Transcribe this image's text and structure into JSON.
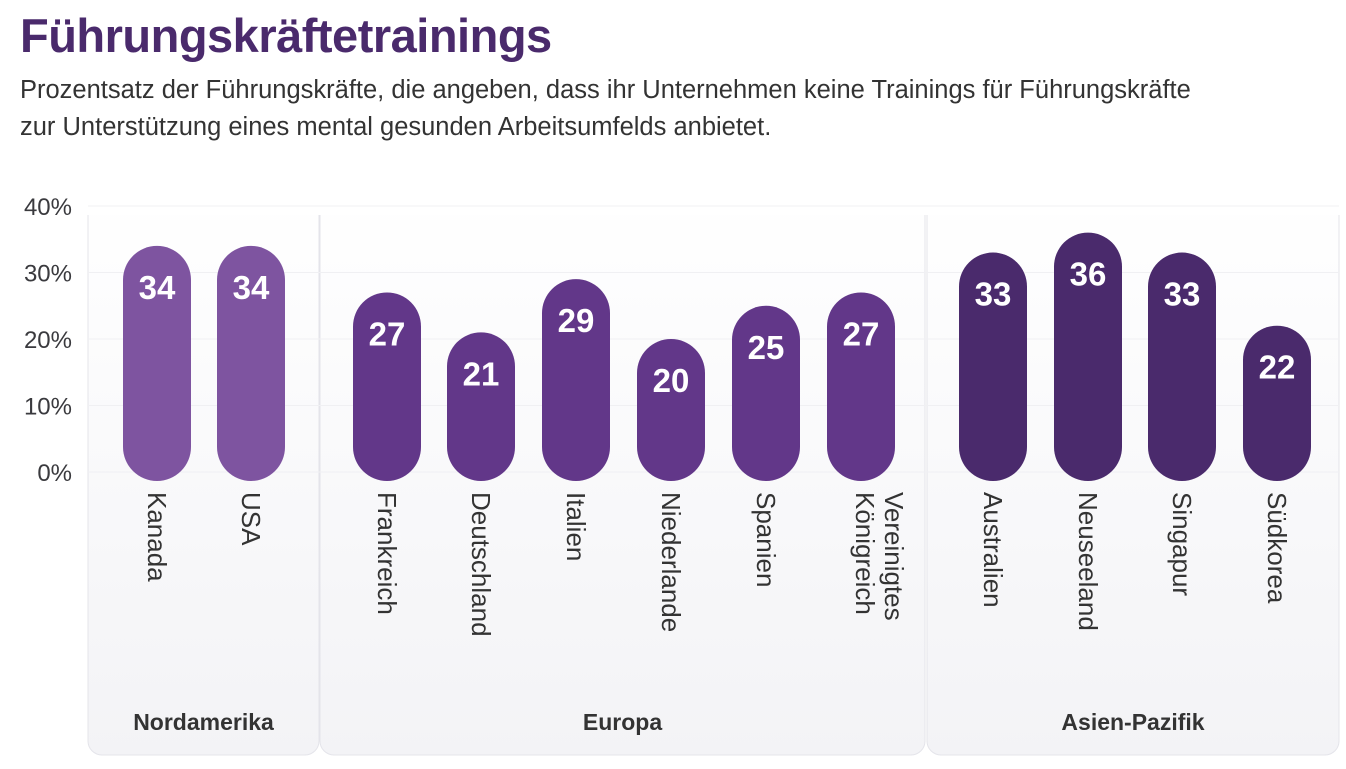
{
  "chart_data": {
    "type": "bar",
    "title": "Führungskräftetrainings",
    "subtitle": "Prozentsatz der Führungskräfte, die angeben, dass ihr Unternehmen keine Trainings für Führungskräfte zur Unterstützung eines mental gesunden Arbeitsumfelds anbietet.",
    "xlabel": "",
    "ylabel": "",
    "ylim": [
      0,
      40
    ],
    "yticks": [
      "0%",
      "10%",
      "20%",
      "30%",
      "40%"
    ],
    "grid": true,
    "groups": [
      {
        "name": "Nordamerika",
        "color": "#7e54a0",
        "categories": [
          "Kanada",
          "USA"
        ],
        "values": [
          34,
          34
        ]
      },
      {
        "name": "Europa",
        "color": "#623789",
        "categories": [
          "Frankreich",
          "Deutschland",
          "Italien",
          "Niederlande",
          "Spanien",
          "Vereinigtes Königreich"
        ],
        "values": [
          27,
          21,
          29,
          20,
          25,
          27
        ]
      },
      {
        "name": "Asien-Pazifik",
        "color": "#4a2a6c",
        "categories": [
          "Australien",
          "Neuseeland",
          "Singapur",
          "Südkorea"
        ],
        "values": [
          33,
          36,
          33,
          22
        ]
      }
    ]
  }
}
